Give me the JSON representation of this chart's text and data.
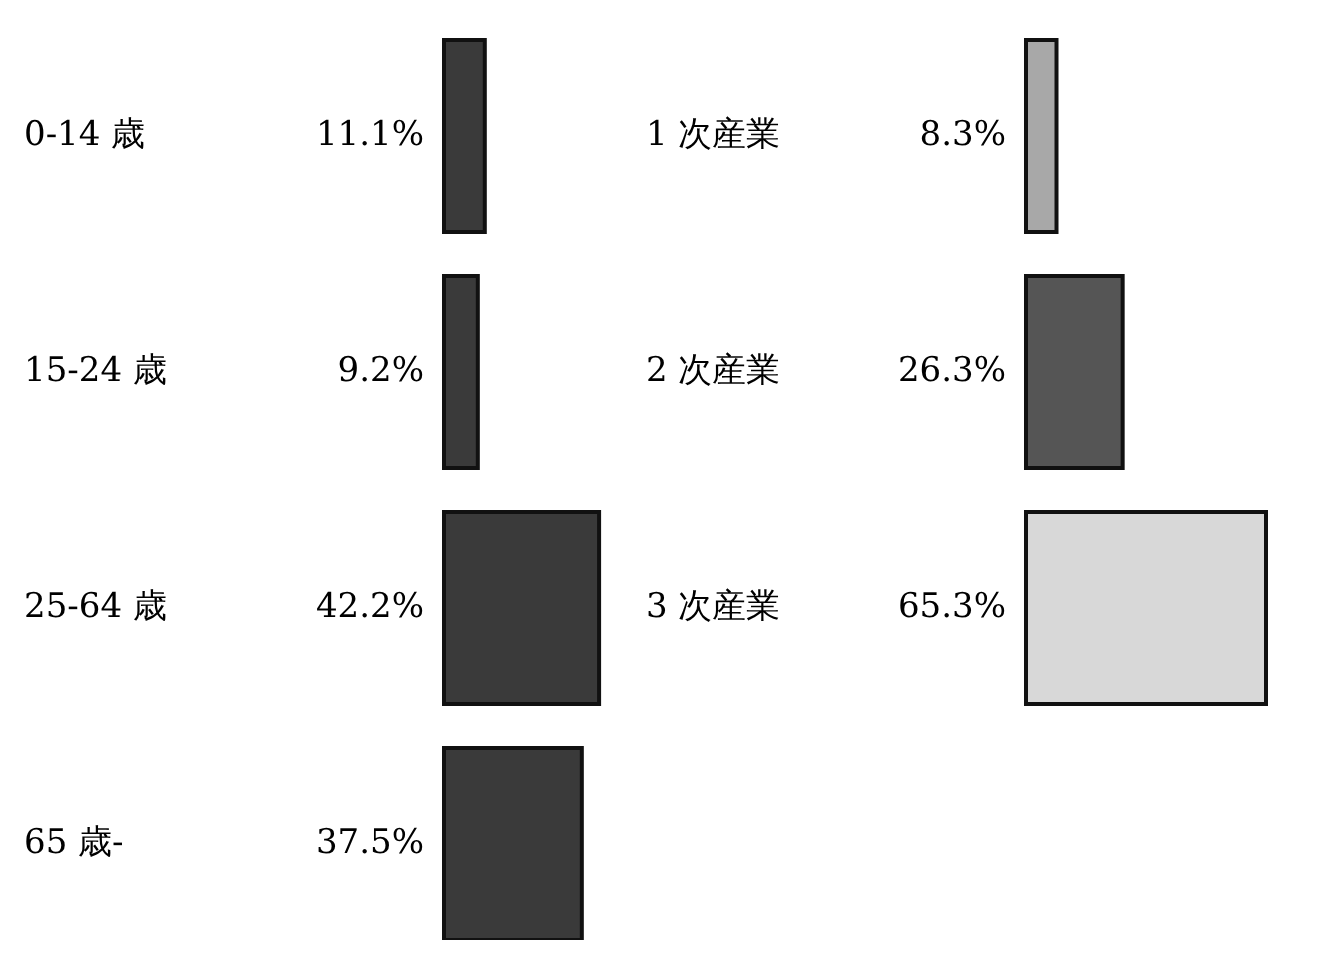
{
  "chart_data": [
    {
      "type": "bar",
      "orientation": "horizontal",
      "categories": [
        "0-14 歳",
        "15-24 歳",
        "25-64 歳",
        "65 歳-"
      ],
      "values": [
        11.1,
        9.2,
        42.2,
        37.5
      ],
      "value_labels": [
        "11.1%",
        "9.2%",
        "42.2%",
        "37.5%"
      ],
      "colors": [
        "#3a3a3a",
        "#3a3a3a",
        "#3a3a3a",
        "#3a3a3a"
      ]
    },
    {
      "type": "bar",
      "orientation": "horizontal",
      "categories": [
        "1 次産業",
        "2 次産業",
        "3 次産業"
      ],
      "values": [
        8.3,
        26.3,
        65.3
      ],
      "value_labels": [
        "8.3%",
        "26.3%",
        "65.3%"
      ],
      "colors": [
        "#a8a8a8",
        "#555555",
        "#d8d8d8"
      ]
    }
  ]
}
